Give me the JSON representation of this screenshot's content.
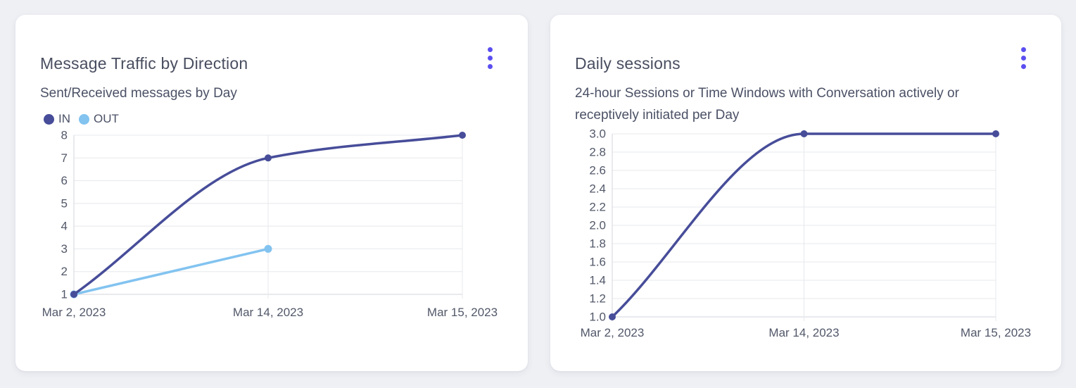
{
  "colors": {
    "menu_accent": "#5b4ff0",
    "series_in": "#474d99",
    "series_out": "#82c3f0",
    "grid": "#e7e8ec",
    "axis": "#d3d6dc",
    "tick_text": "#525869"
  },
  "cards": [
    {
      "menu": "kebab-menu"
    },
    {
      "menu": "kebab-menu"
    }
  ],
  "chart_data": [
    {
      "type": "line",
      "title": "Message Traffic by Direction",
      "subtitle": "Sent/Received messages by Day",
      "categories": [
        "Mar 2, 2023",
        "Mar 14, 2023",
        "Mar 15, 2023"
      ],
      "series": [
        {
          "name": "IN",
          "values": [
            1,
            7,
            8
          ],
          "color": "#474d99",
          "dot_r": 5
        },
        {
          "name": "OUT",
          "values": [
            1,
            3,
            null
          ],
          "color": "#82c3f0",
          "dot_r": 5.5
        }
      ],
      "ylim": [
        1,
        8
      ],
      "yticks": [
        1,
        2,
        3,
        4,
        5,
        6,
        7,
        8
      ],
      "ytick_labels": [
        "1",
        "2",
        "3",
        "4",
        "5",
        "6",
        "7",
        "8"
      ],
      "grid": true,
      "smooth": true,
      "legend_position": "top-left"
    },
    {
      "type": "line",
      "title": "Daily sessions",
      "subtitle": "24-hour Sessions or Time Windows with Conversation actively or receptively initiated per Day",
      "categories": [
        "Mar 2, 2023",
        "Mar 14, 2023",
        "Mar 15, 2023"
      ],
      "series": [
        {
          "name": "Daily sessions",
          "values": [
            1,
            3,
            3
          ],
          "color": "#474d99",
          "dot_r": 5
        }
      ],
      "ylim": [
        1,
        3
      ],
      "yticks": [
        1.0,
        1.2,
        1.4,
        1.6,
        1.8,
        2.0,
        2.2,
        2.4,
        2.6,
        2.8,
        3.0
      ],
      "ytick_labels": [
        "1.0",
        "1.2",
        "1.4",
        "1.6",
        "1.8",
        "2.0",
        "2.2",
        "2.4",
        "2.6",
        "2.8",
        "3.0"
      ],
      "grid": true,
      "smooth": true,
      "legend_position": "none"
    }
  ]
}
